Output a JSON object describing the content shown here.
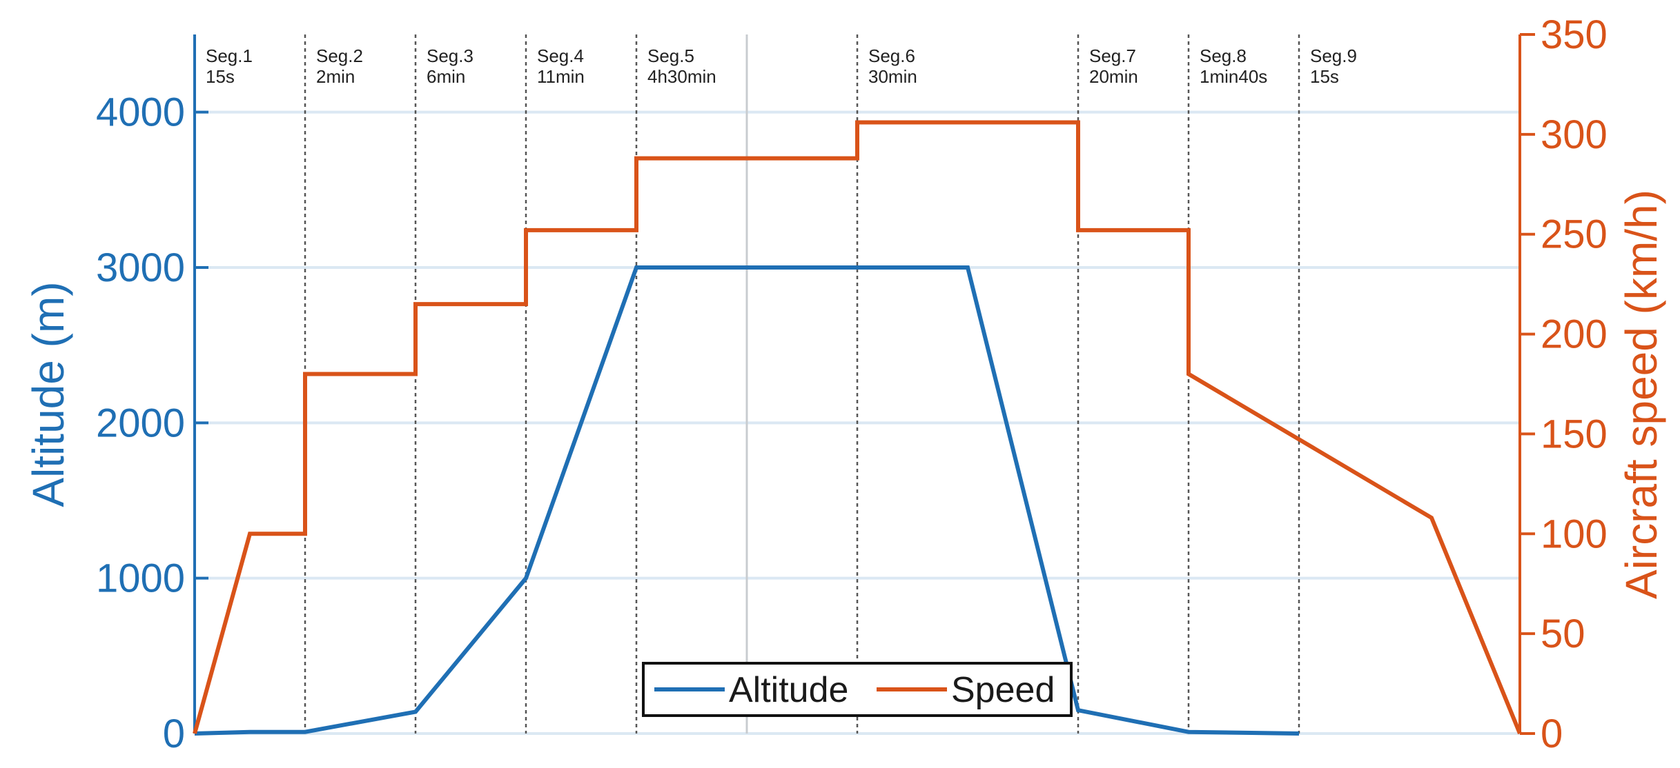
{
  "chart_data": {
    "type": "line",
    "title": "",
    "xlabel": "",
    "ylabel_left": "Altitude (m)",
    "ylabel_right": "Aircraft speed (km/h)",
    "ylim_left": [
      0,
      4500
    ],
    "ylim_right": [
      0,
      350
    ],
    "yticks_left": [
      "0",
      "1000",
      "2000",
      "3000",
      "4000"
    ],
    "yticks_right": [
      "0",
      "50",
      "100",
      "150",
      "200",
      "250",
      "300",
      "350"
    ],
    "grid": "horizontal",
    "legend_position": "bottom-center",
    "colors": {
      "altitude": "#1f6fb4",
      "speed": "#d95319",
      "grid": "#dbe8f3",
      "separator": "#555555"
    },
    "segments": [
      {
        "name": "Seg.1",
        "duration": "15s"
      },
      {
        "name": "Seg.2",
        "duration": "2min"
      },
      {
        "name": "Seg.3",
        "duration": "6min"
      },
      {
        "name": "Seg.4",
        "duration": "11min"
      },
      {
        "name": "Seg.5",
        "duration": "4h30min"
      },
      {
        "name": "Seg.6",
        "duration": "30min"
      },
      {
        "name": "Seg.7",
        "duration": "20min"
      },
      {
        "name": "Seg.8",
        "duration": "1min40s"
      },
      {
        "name": "Seg.9",
        "duration": "15s"
      }
    ],
    "series": [
      {
        "name": "Altitude",
        "axis": "left",
        "x": [
          0,
          0.5,
          1,
          2,
          3,
          4,
          5,
          6,
          7,
          8,
          9,
          10
        ],
        "values": [
          0,
          10,
          10,
          140,
          1000,
          3000,
          3000,
          3000,
          3000,
          150,
          10,
          0
        ]
      },
      {
        "name": "Speed",
        "axis": "right",
        "x": [
          0,
          0.5,
          1,
          1,
          2,
          2,
          3,
          3,
          4,
          4,
          6,
          6,
          8,
          8,
          9,
          9,
          11.2,
          12
        ],
        "values": [
          0,
          100,
          100,
          180,
          180,
          215,
          215,
          252,
          252,
          288,
          288,
          306,
          306,
          252,
          252,
          180,
          108,
          0
        ]
      }
    ]
  }
}
